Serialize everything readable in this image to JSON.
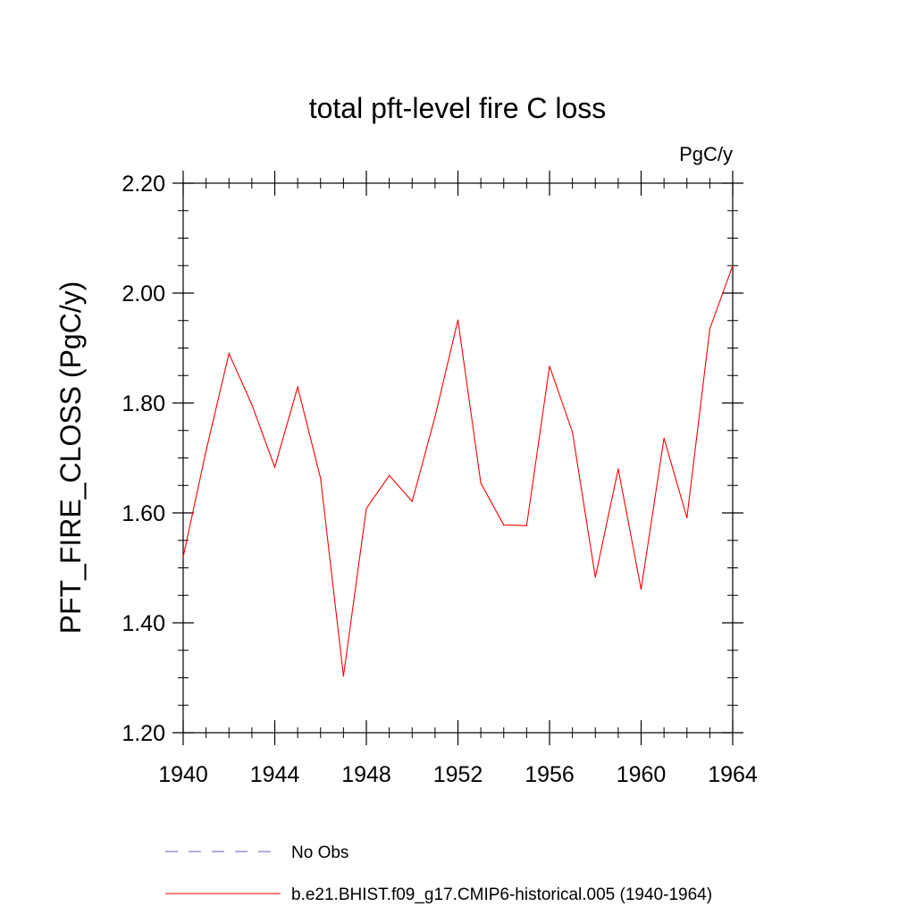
{
  "chart_data": {
    "type": "line",
    "title": "total pft-level fire C loss",
    "units_label": "PgC/y",
    "ylabel": "PFT_FIRE_CLOSS  (PgC/y)",
    "xlabel": "",
    "xlim": [
      1940,
      1964
    ],
    "ylim": [
      1.2,
      2.2
    ],
    "xticks": [
      1940,
      1944,
      1948,
      1952,
      1956,
      1960,
      1964
    ],
    "xtick_labels": [
      "1940",
      "1944",
      "1948",
      "1952",
      "1956",
      "1960",
      "1964"
    ],
    "yticks": [
      1.2,
      1.4,
      1.6,
      1.8,
      2.0,
      2.2
    ],
    "ytick_labels": [
      "1.20",
      "1.40",
      "1.60",
      "1.80",
      "2.00",
      "2.20"
    ],
    "x": [
      1940,
      1941,
      1942,
      1943,
      1944,
      1945,
      1946,
      1947,
      1948,
      1949,
      1950,
      1951,
      1952,
      1953,
      1954,
      1955,
      1956,
      1957,
      1958,
      1959,
      1960,
      1961,
      1962,
      1963,
      1964
    ],
    "series": [
      {
        "name": "b.e21.BHIST.f09_g17.CMIP6-historical.005 (1940-1964)",
        "color": "#ff0000",
        "values": [
          1.52,
          1.713,
          1.89,
          1.797,
          1.683,
          1.829,
          1.663,
          1.303,
          1.608,
          1.668,
          1.621,
          1.775,
          1.951,
          1.654,
          1.578,
          1.577,
          1.867,
          1.747,
          1.483,
          1.68,
          1.461,
          1.736,
          1.591,
          1.935,
          2.05
        ]
      }
    ],
    "legend": {
      "placement": "bottom",
      "entries": [
        {
          "label": "No Obs",
          "color": "#6a5acd",
          "style": "dashed"
        },
        {
          "label": "b.e21.BHIST.f09_g17.CMIP6-historical.005 (1940-1964)",
          "color": "#ff0000",
          "style": "solid"
        }
      ]
    },
    "grid": false
  }
}
